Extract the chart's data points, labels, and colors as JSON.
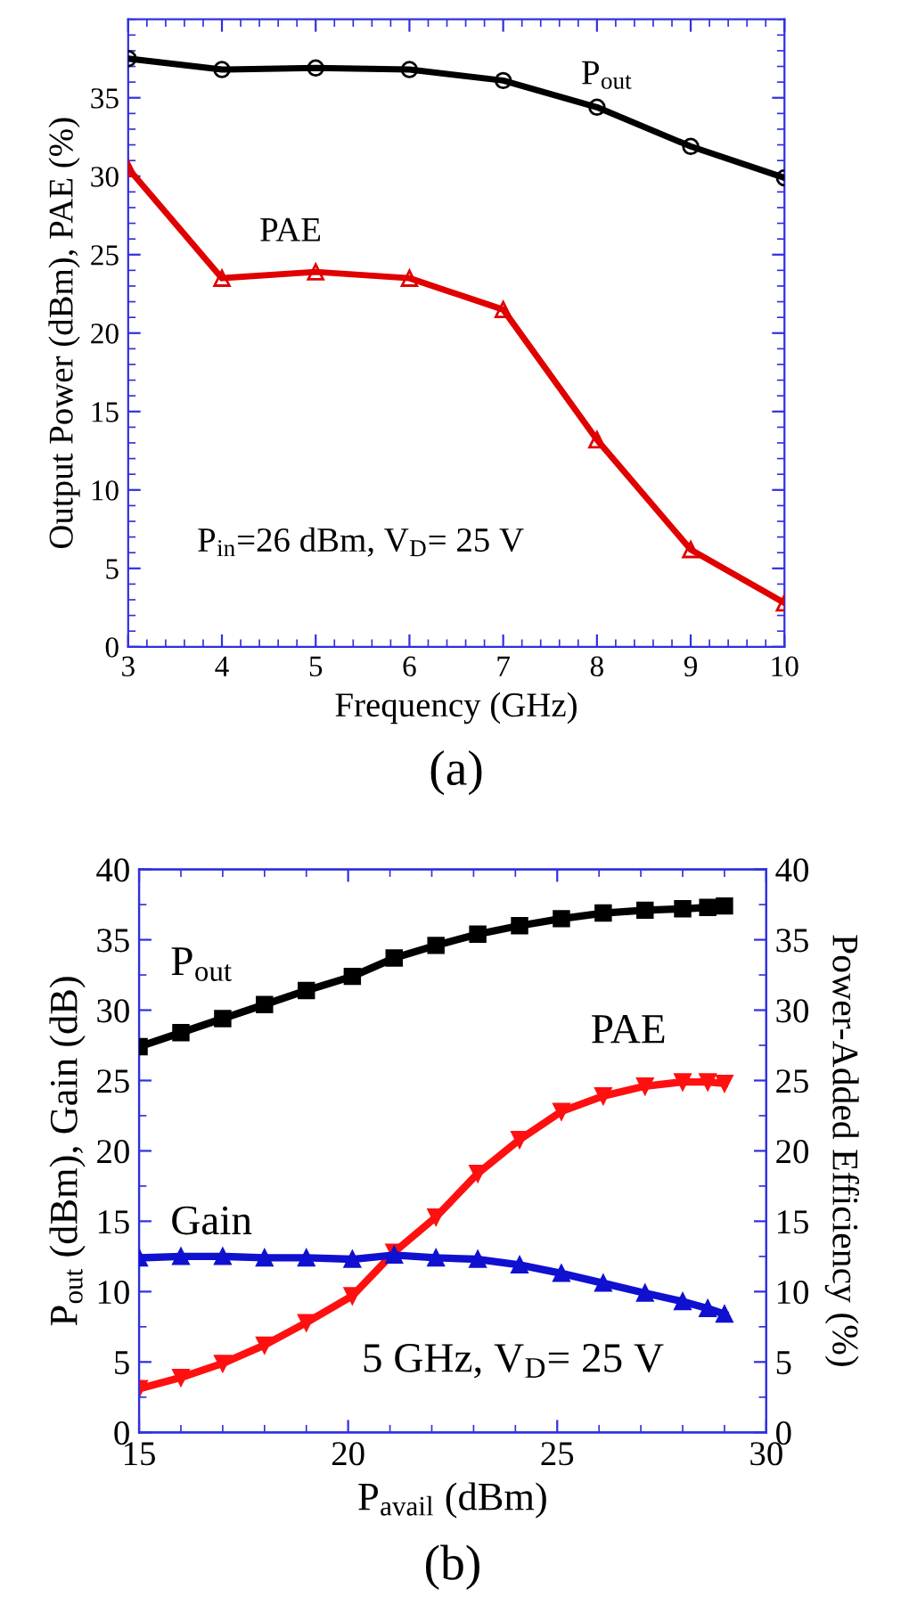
{
  "chart_data": [
    {
      "type": "line",
      "title": "(a)",
      "xlabel": "Frequency (GHz)",
      "ylabel": "Output Power (dBm), PAE (%)",
      "x": [
        3,
        4,
        5,
        6,
        7,
        8,
        9,
        10
      ],
      "series": [
        {
          "name": "P$_{out}$",
          "color": "#000000",
          "marker": "circle",
          "values": [
            37.5,
            36.8,
            36.9,
            36.8,
            36.1,
            34.4,
            31.9,
            29.9
          ]
        },
        {
          "name": "PAE",
          "color": "#e00000",
          "marker": "triangle",
          "values": [
            30.5,
            23.5,
            23.9,
            23.5,
            21.5,
            13.2,
            6.2,
            2.8
          ]
        }
      ],
      "xlim": [
        3,
        10
      ],
      "xticks": [
        3,
        4,
        5,
        6,
        7,
        8,
        9,
        10
      ],
      "ylim": [
        0,
        40
      ],
      "yticks": [
        0,
        5,
        10,
        15,
        20,
        25,
        30,
        35
      ],
      "annotations": [
        "P$_{in}$=26 dBm, V$_{D}$= 25 V"
      ],
      "grid": false,
      "legend": false
    },
    {
      "type": "line",
      "title": "(b)",
      "xlabel": "P$_{avail}$ (dBm)",
      "ylabel": "P$_{out}$ (dBm), Gain (dB)",
      "y2label": "Power-Added Efficiency (%)",
      "x": [
        15,
        16,
        17,
        18,
        19,
        20.1,
        21.1,
        22.1,
        23.1,
        24.1,
        25.1,
        26.1,
        27.1,
        28.0,
        28.6,
        29.0
      ],
      "series": [
        {
          "name": "P$_{out}$",
          "color": "#000000",
          "marker": "square",
          "values": [
            27.4,
            28.4,
            29.4,
            30.4,
            31.4,
            32.4,
            33.7,
            34.6,
            35.4,
            36.0,
            36.5,
            36.9,
            37.1,
            37.2,
            37.3,
            37.4
          ]
        },
        {
          "name": "Gain",
          "color": "#1010d0",
          "marker": "triangle",
          "values": [
            12.4,
            12.5,
            12.5,
            12.4,
            12.4,
            12.3,
            12.6,
            12.4,
            12.3,
            11.9,
            11.3,
            10.6,
            9.9,
            9.3,
            8.8,
            8.4
          ]
        },
        {
          "name": "PAE",
          "color": "#ff1010",
          "marker": "triangle",
          "axis": "y2",
          "values": [
            3.1,
            3.9,
            4.9,
            6.2,
            7.8,
            9.7,
            12.8,
            15.3,
            18.4,
            20.8,
            22.8,
            23.9,
            24.6,
            24.9,
            24.9,
            24.8
          ]
        }
      ],
      "xlim": [
        15,
        30
      ],
      "xticks": [
        15,
        20,
        25,
        30
      ],
      "ylim": [
        0,
        40
      ],
      "yticks": [
        0,
        5,
        10,
        15,
        20,
        25,
        30,
        35,
        40
      ],
      "y2lim": [
        0,
        40
      ],
      "y2ticks": [
        0,
        5,
        10,
        15,
        20,
        25,
        30,
        35,
        40
      ],
      "annotations": [
        "5 GHz, V$_{D}$= 25 V"
      ],
      "grid": false,
      "legend": false
    }
  ]
}
